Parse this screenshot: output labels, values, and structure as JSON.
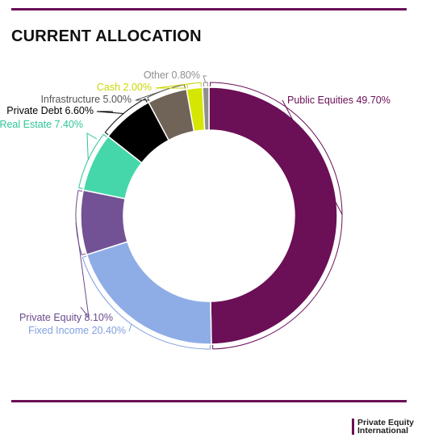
{
  "title": "CURRENT ALLOCATION",
  "brand": {
    "line1": "Private Equity",
    "line2": "International"
  },
  "chart_data": {
    "type": "pie",
    "donut": true,
    "title": "CURRENT ALLOCATION",
    "unit": "%",
    "slices": [
      {
        "label": "Public Equities",
        "value": 49.7,
        "display": "Public Equities 49.70%",
        "color": "#6b0f56",
        "label_color": "#6b0f56"
      },
      {
        "label": "Fixed Income",
        "value": 20.4,
        "display": "Fixed Income 20.40%",
        "color": "#8eade6",
        "label_color": "#7f9fdc"
      },
      {
        "label": "Private Equity",
        "value": 8.1,
        "display": "Private Equity 8.10%",
        "color": "#725294",
        "label_color": "#6a4a8c"
      },
      {
        "label": "Real Estate",
        "value": 7.4,
        "display": "Real Estate 7.40%",
        "color": "#45d7a9",
        "label_color": "#2fc596"
      },
      {
        "label": "Private Debt",
        "value": 6.6,
        "display": "Private Debt 6.60%",
        "color": "#000000",
        "label_color": "#000000"
      },
      {
        "label": "Infrastructure",
        "value": 5.0,
        "display": "Infrastructure 5.00%",
        "color": "#706357",
        "label_color": "#555555"
      },
      {
        "label": "Cash",
        "value": 2.0,
        "display": "Cash 2.00%",
        "color": "#d5e600",
        "label_color": "#c9d800"
      },
      {
        "label": "Other",
        "value": 0.8,
        "display": "Other 0.80%",
        "color": "#8f8f8f",
        "label_color": "#8f8f8f"
      }
    ]
  }
}
